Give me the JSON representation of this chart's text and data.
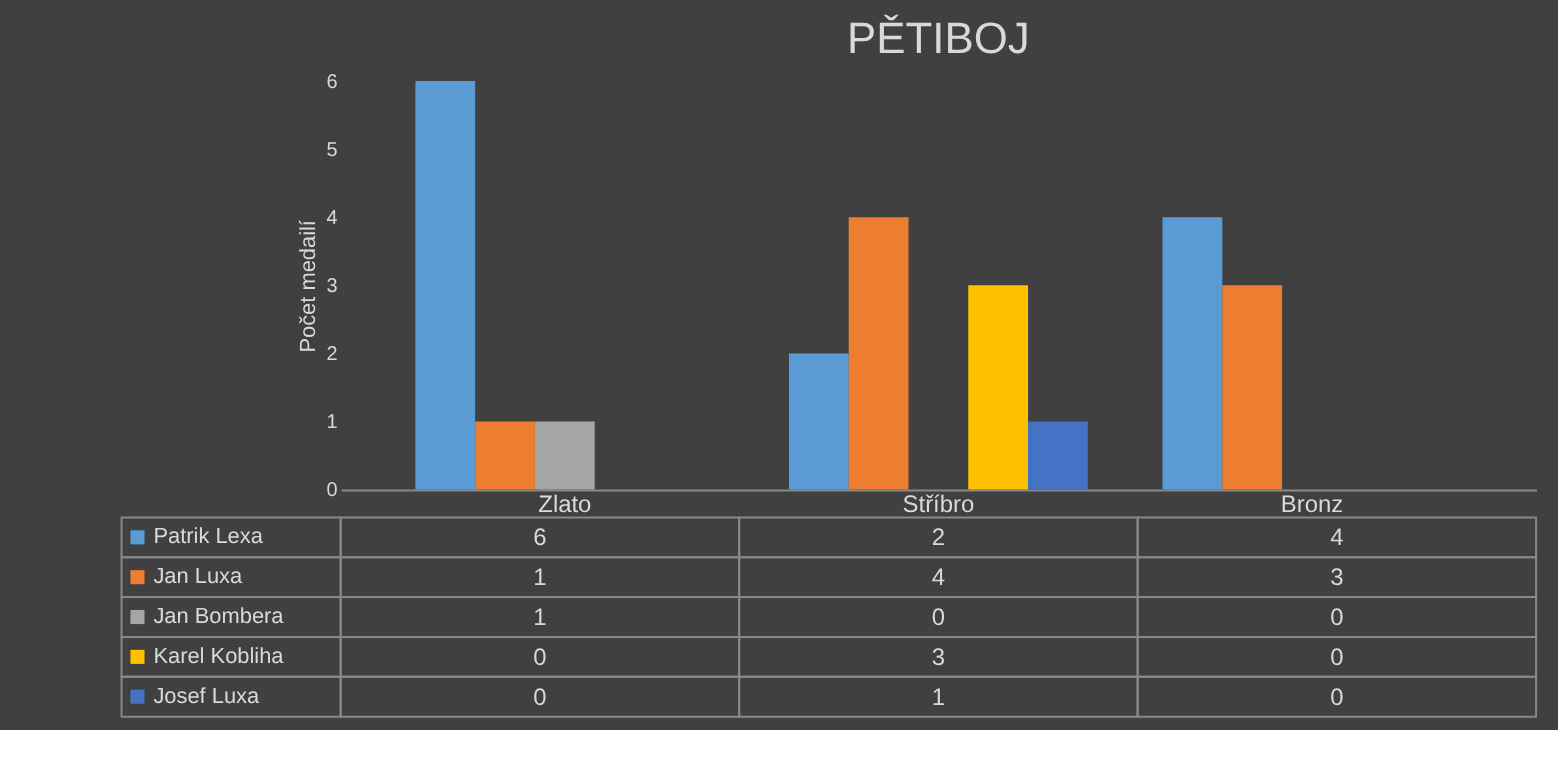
{
  "chart_data": {
    "type": "bar",
    "title": "PĚTIBOJ",
    "ylabel": "Počet medailí",
    "categories": [
      "Zlato",
      "Stříbro",
      "Bronz"
    ],
    "series": [
      {
        "name": "Patrik Lexa",
        "color": "#5b9bd5",
        "values": [
          6,
          2,
          4
        ]
      },
      {
        "name": "Jan Luxa",
        "color": "#ed7d31",
        "values": [
          1,
          4,
          3
        ]
      },
      {
        "name": "Jan Bombera",
        "color": "#a5a5a5",
        "values": [
          1,
          0,
          0
        ]
      },
      {
        "name": "Karel Kobliha",
        "color": "#ffc000",
        "values": [
          0,
          3,
          0
        ]
      },
      {
        "name": "Josef Luxa",
        "color": "#4472c4",
        "values": [
          0,
          1,
          0
        ]
      }
    ],
    "ylim": [
      0,
      6
    ],
    "yticks": [
      0,
      1,
      2,
      3,
      4,
      5,
      6
    ],
    "grid": false,
    "data_labels": true,
    "legend": "bottom"
  }
}
